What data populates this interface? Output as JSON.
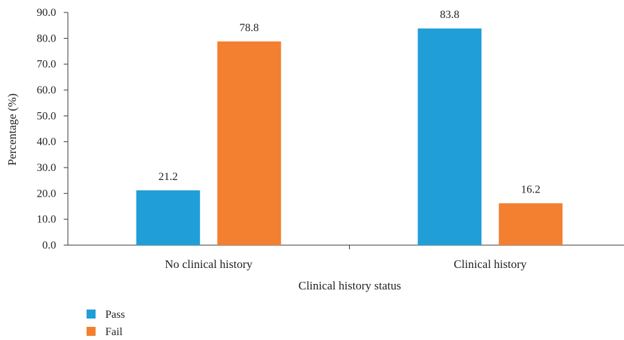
{
  "chart_data": {
    "type": "bar",
    "categories": [
      "No clinical history",
      "Clinical history"
    ],
    "series": [
      {
        "name": "Pass",
        "values": [
          21.2,
          83.8
        ],
        "color": "#1f9ed8"
      },
      {
        "name": "Fail",
        "values": [
          78.8,
          16.2
        ],
        "color": "#f37f30"
      }
    ],
    "data_labels": [
      [
        "21.2",
        "78.8"
      ],
      [
        "83.8",
        "16.2"
      ]
    ],
    "xlabel": "Clinical history status",
    "ylabel": "Percentage (%)",
    "ylim": [
      0,
      90
    ],
    "yticks": [
      "0.0",
      "10.0",
      "20.0",
      "30.0",
      "40.0",
      "50.0",
      "60.0",
      "70.0",
      "80.0",
      "90.0"
    ],
    "grid": false,
    "legend_position": "bottom-left"
  }
}
